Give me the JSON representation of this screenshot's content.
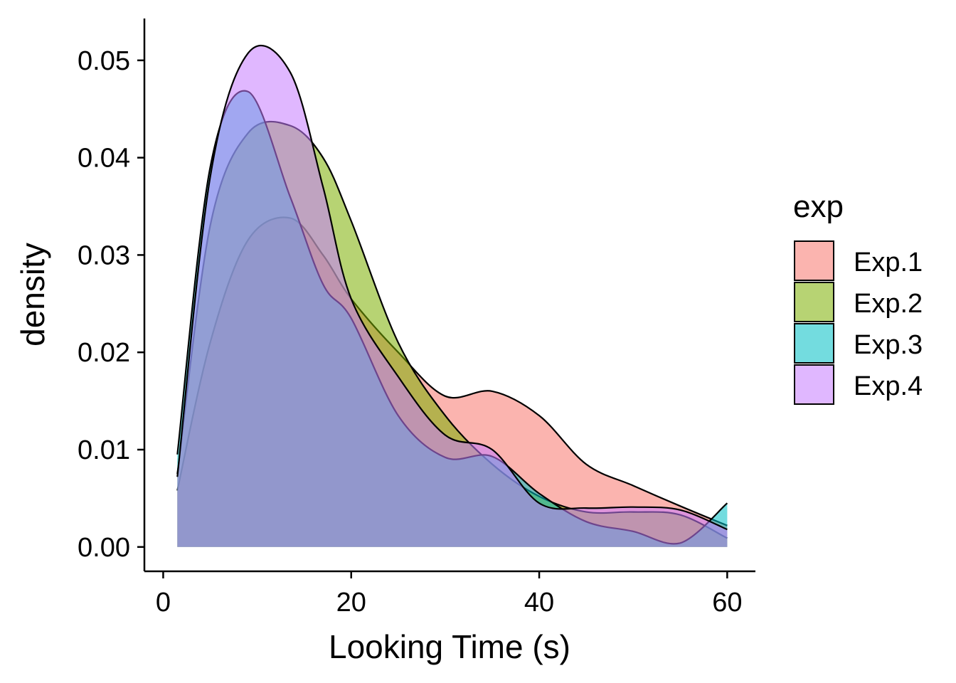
{
  "chart_data": {
    "type": "area",
    "subtype": "density",
    "title": "",
    "xlabel": "Looking Time (s)",
    "ylabel": "density",
    "xlim": [
      -2,
      63
    ],
    "ylim": [
      -0.0025,
      0.0543
    ],
    "x_ticks": [
      "0",
      "20",
      "40",
      "60"
    ],
    "y_ticks": [
      "0.00",
      "0.01",
      "0.02",
      "0.03",
      "0.04",
      "0.05"
    ],
    "grid": false,
    "legend": {
      "title": "exp",
      "position": "right"
    },
    "x": [
      1.5,
      5,
      9,
      13.5,
      17,
      20,
      25,
      30,
      35,
      40,
      45,
      50,
      55,
      60
    ],
    "series": [
      {
        "name": "Exp.1",
        "color": "#F8766D",
        "values": [
          0.0058,
          0.021,
          0.0315,
          0.0338,
          0.03,
          0.0255,
          0.02,
          0.0155,
          0.016,
          0.0135,
          0.0085,
          0.0063,
          0.0042,
          0.0022
        ]
      },
      {
        "name": "Exp.2",
        "color": "#7CAE00",
        "values": [
          0.0075,
          0.033,
          0.0425,
          0.0433,
          0.04,
          0.0335,
          0.021,
          0.0135,
          0.0085,
          0.0052,
          0.0036,
          0.0036,
          0.0033,
          0.0009
        ]
      },
      {
        "name": "Exp.3",
        "color": "#00BFC4",
        "values": [
          0.0095,
          0.039,
          0.0468,
          0.036,
          0.027,
          0.0235,
          0.0135,
          0.0092,
          0.0093,
          0.0055,
          0.0026,
          0.0016,
          0.0004,
          0.0045
        ]
      },
      {
        "name": "Exp.4",
        "color": "#C77CFF",
        "values": [
          0.0072,
          0.038,
          0.0507,
          0.0488,
          0.037,
          0.0255,
          0.0175,
          0.0115,
          0.01,
          0.0045,
          0.004,
          0.0041,
          0.0038,
          0.0018
        ]
      }
    ]
  }
}
